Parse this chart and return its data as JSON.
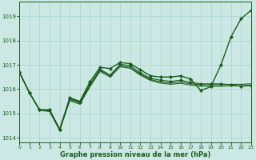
{
  "xlabel": "Graphe pression niveau de la mer (hPa)",
  "ylim": [
    1013.8,
    1019.6
  ],
  "xlim": [
    0,
    23
  ],
  "yticks": [
    1014,
    1015,
    1016,
    1017,
    1018,
    1019
  ],
  "xticks": [
    0,
    1,
    2,
    3,
    4,
    5,
    6,
    7,
    8,
    9,
    10,
    11,
    12,
    13,
    14,
    15,
    16,
    17,
    18,
    19,
    20,
    21,
    22,
    23
  ],
  "bg_color": "#cce8e4",
  "line_color": "#1a5c1a",
  "grid_color": "#a8d0c8",
  "series": [
    {
      "y": [
        1016.7,
        1015.85,
        1015.15,
        1015.15,
        1014.35,
        1015.65,
        1015.5,
        1016.3,
        1016.9,
        1016.85,
        1017.1,
        1017.05,
        1016.8,
        1016.55,
        1016.5,
        1016.5,
        1016.55,
        1016.42,
        1015.95,
        1016.1,
        1017.0,
        1018.15,
        1018.9,
        1019.25
      ],
      "marker": true,
      "lw": 1.0
    },
    {
      "y": [
        1016.7,
        1015.85,
        1015.15,
        1015.15,
        1014.35,
        1015.62,
        1015.47,
        1016.2,
        1016.82,
        1016.58,
        1017.02,
        1016.97,
        1016.67,
        1016.45,
        1016.37,
        1016.32,
        1016.37,
        1016.28,
        1016.22,
        1016.22,
        1016.22,
        1016.18,
        1016.12,
        1016.15
      ],
      "marker": true,
      "lw": 0.85
    },
    {
      "y": [
        1016.7,
        1015.85,
        1015.15,
        1015.1,
        1014.33,
        1015.58,
        1015.43,
        1016.15,
        1016.78,
        1016.55,
        1016.97,
        1016.9,
        1016.62,
        1016.4,
        1016.3,
        1016.25,
        1016.3,
        1016.22,
        1016.18,
        1016.18,
        1016.18,
        1016.2,
        1016.2,
        1016.22
      ],
      "marker": false,
      "lw": 0.8
    },
    {
      "y": [
        1016.7,
        1015.85,
        1015.13,
        1015.08,
        1014.3,
        1015.53,
        1015.38,
        1016.1,
        1016.73,
        1016.5,
        1016.92,
        1016.86,
        1016.58,
        1016.36,
        1016.25,
        1016.2,
        1016.24,
        1016.17,
        1016.12,
        1016.12,
        1016.12,
        1016.14,
        1016.14,
        1016.16
      ],
      "marker": false,
      "lw": 0.75
    }
  ]
}
